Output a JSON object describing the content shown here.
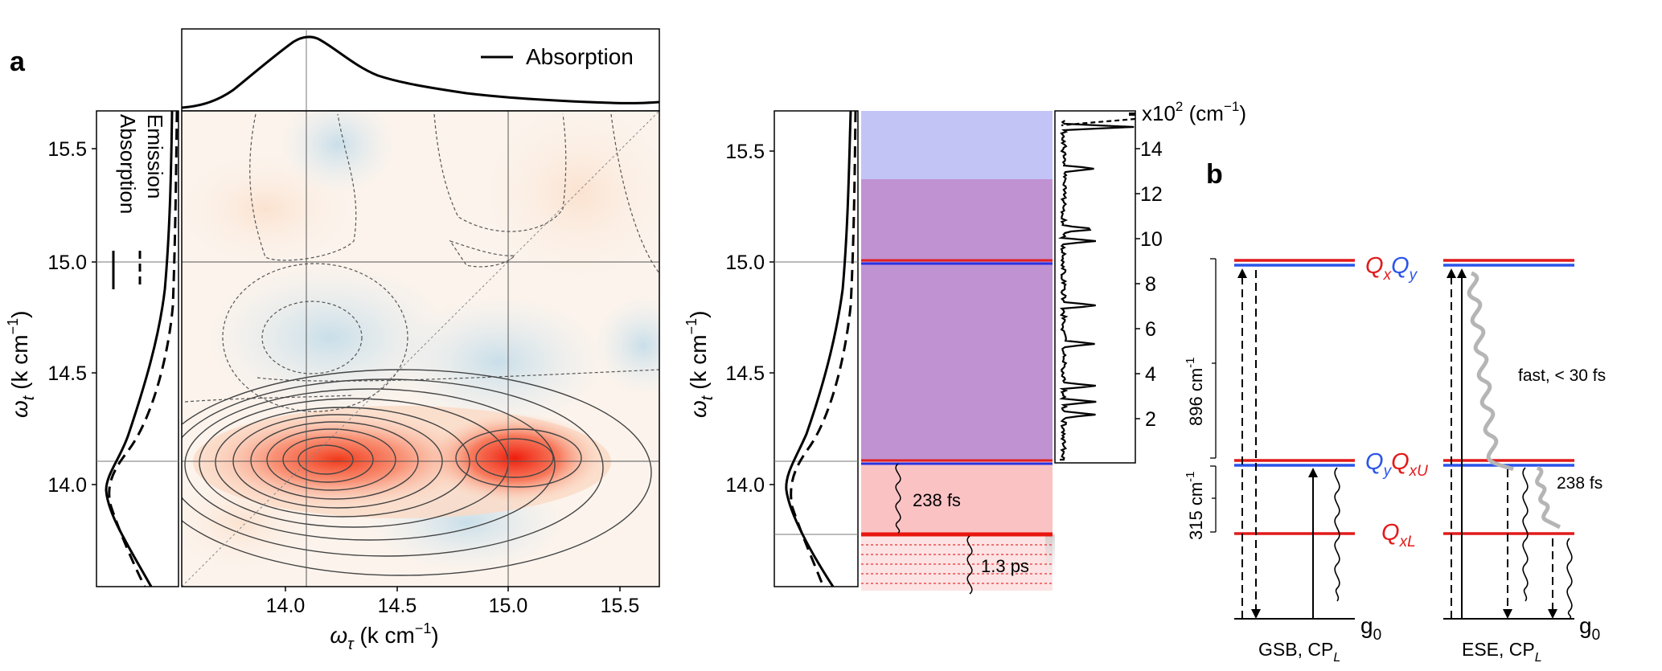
{
  "panel_a": {
    "label": "a",
    "top_legend": "Absorption",
    "left_legend": [
      "Absorption",
      "Emission"
    ],
    "xlabel_main": "ω",
    "xlabel_sub": "τ",
    "xlabel_unit": " (k cm",
    "xlabel_exp": "−1",
    "xlabel_close": ")",
    "ylabel_main": "ω",
    "ylabel_sub": "t",
    "ylabel_unit": " (k cm",
    "ylabel_exp": "−1",
    "ylabel_close": ")"
  },
  "panel_mid": {
    "ylabel_main": "ω",
    "ylabel_sub": "t",
    "ylabel_unit": " (k cm",
    "ylabel_exp": "−1",
    "ylabel_close": ")",
    "time_238": "238 fs",
    "time_13": "1.3 ps",
    "spec_unit_a": "x10",
    "spec_unit_exp": "2",
    "spec_unit_b": " (cm",
    "spec_unit_exp2": "−1",
    "spec_unit_c": ")"
  },
  "panel_b": {
    "label": "b",
    "level_top_1": "Q",
    "level_top_1_sub": "x",
    "level_top_2": "Q",
    "level_top_2_sub": "y",
    "level_mid_1": "Q",
    "level_mid_1_sub": "y",
    "level_mid_2": "Q",
    "level_mid_2_sub": "xU",
    "level_low": "Q",
    "level_low_sub": "xL",
    "ground_left": "g",
    "ground_left_sub": "0",
    "ground_right": "g",
    "ground_right_sub": "0",
    "gap_896": "896 cm",
    "gap_896_exp": "-1",
    "gap_315": "315 cm",
    "gap_315_exp": "-1",
    "fast": "fast, < 30 fs",
    "time_238": "238 fs",
    "caption_left": "GSB, CP",
    "caption_left_sub": "L",
    "caption_right": "ESE, CP",
    "caption_right_sub": "L"
  },
  "chart_data": [
    {
      "type": "heatmap",
      "xlim": [
        13.55,
        15.7
      ],
      "ylim": [
        13.55,
        15.7
      ],
      "x_ticks": [
        "14.0",
        "14.5",
        "15.0",
        "15.5"
      ],
      "y_ticks": [
        "14.0",
        "14.5",
        "15.0",
        "15.5"
      ],
      "gridlines_x": [
        14.1,
        15.0
      ],
      "gridlines_y": [
        14.1,
        15.0
      ],
      "peaks": [
        {
          "x": 14.1,
          "y": 14.1,
          "sign": "positive"
        },
        {
          "x": 15.05,
          "y": 14.1,
          "sign": "positive"
        },
        {
          "x": 14.1,
          "y": 14.65,
          "sign": "negative"
        }
      ],
      "top_spectrum_peak": 14.0,
      "side_spectrum_peak": 14.0
    },
    {
      "type": "line",
      "y_ticks": [
        "14.0",
        "14.5",
        "15.0",
        "15.5"
      ],
      "ylim": [
        13.55,
        15.7
      ],
      "levels": [
        15.0,
        14.1,
        13.8
      ],
      "right_axis_ticks": [
        "2",
        "4",
        "6",
        "8",
        "10",
        "12",
        "14"
      ]
    }
  ]
}
